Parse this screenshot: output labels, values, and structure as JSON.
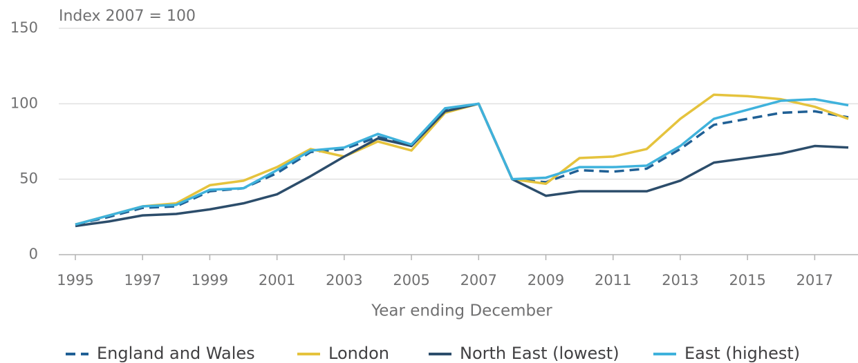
{
  "chart_data": {
    "type": "line",
    "y_axis_label": "Index 2007 = 100",
    "x_axis_label": "Year ending December",
    "x": [
      1995,
      1996,
      1997,
      1998,
      1999,
      2000,
      2001,
      2002,
      2003,
      2004,
      2005,
      2006,
      2007,
      2008,
      2009,
      2010,
      2011,
      2012,
      2013,
      2014,
      2015,
      2016,
      2017,
      2018
    ],
    "series": [
      {
        "name": "England and Wales",
        "color": "#206095",
        "dashed": true,
        "values": [
          20,
          25,
          31,
          32,
          42,
          44,
          54,
          68,
          70,
          78,
          73,
          96,
          100,
          50,
          48,
          56,
          55,
          57,
          70,
          86,
          90,
          94,
          95,
          91
        ]
      },
      {
        "name": "London",
        "color": "#e5c33d",
        "dashed": false,
        "values": [
          20,
          26,
          32,
          34,
          46,
          49,
          58,
          70,
          65,
          75,
          69,
          94,
          100,
          50,
          47,
          64,
          65,
          70,
          90,
          106,
          105,
          103,
          98,
          90
        ]
      },
      {
        "name": "North East (lowest)",
        "color": "#2c4d6b",
        "dashed": false,
        "values": [
          19,
          22,
          26,
          27,
          30,
          34,
          40,
          52,
          65,
          77,
          72,
          95,
          100,
          50,
          39,
          42,
          42,
          42,
          49,
          61,
          64,
          67,
          72,
          71
        ]
      },
      {
        "name": "East (highest)",
        "color": "#3fb2dc",
        "dashed": false,
        "values": [
          20,
          26,
          32,
          33,
          43,
          44,
          56,
          69,
          71,
          80,
          73,
          97,
          100,
          50,
          51,
          58,
          58,
          59,
          72,
          90,
          96,
          102,
          103,
          99
        ]
      }
    ],
    "xlim": [
      1995,
      2018
    ],
    "xticks": [
      1995,
      1997,
      1999,
      2001,
      2003,
      2005,
      2007,
      2009,
      2011,
      2013,
      2015,
      2017
    ],
    "ylim": [
      0,
      150
    ],
    "yticks": [
      0,
      50,
      100,
      150
    ],
    "grid": true,
    "legend": "bottom"
  }
}
